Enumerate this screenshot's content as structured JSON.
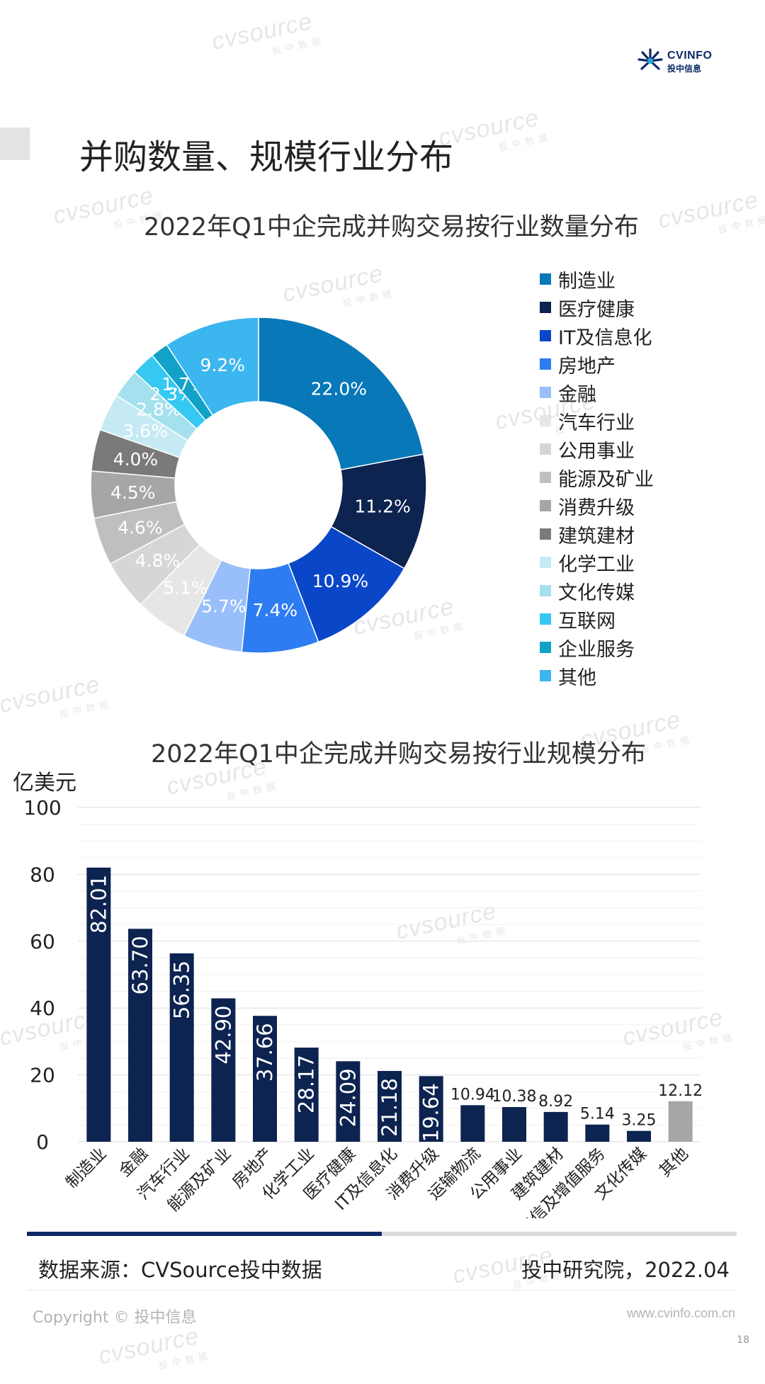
{
  "brand": {
    "name": "CVINFO",
    "sub": "投中信息"
  },
  "page_title": "并购数量、规模行业分布",
  "chart_data": [
    {
      "type": "pie",
      "title": "2022年Q1中企完成并购交易按行业数量分布",
      "categories": [
        "制造业",
        "医疗健康",
        "IT及信息化",
        "房地产",
        "金融",
        "汽车行业",
        "公用事业",
        "能源及矿业",
        "消费升级",
        "建筑建材",
        "化学工业",
        "文化传媒",
        "互联网",
        "企业服务",
        "其他"
      ],
      "values": [
        22.0,
        11.2,
        10.9,
        7.4,
        5.7,
        5.1,
        4.8,
        4.6,
        4.5,
        4.0,
        3.6,
        2.8,
        2.3,
        1.7,
        9.2
      ],
      "labels": [
        "22.0%",
        "11.2%",
        "10.9%",
        "7.4%",
        "5.7%",
        "5.1%",
        "4.8%",
        "4.6%",
        "4.5%",
        "4.0%",
        "3.6%",
        "2.8%",
        "2.3%",
        "1.7%",
        "9.2%"
      ],
      "colors": [
        "#0878b8",
        "#0d2350",
        "#0a46c8",
        "#2e7cf2",
        "#98bff9",
        "#e6e6e6",
        "#d6d6d6",
        "#bfbfbf",
        "#a6a6a6",
        "#7a7a7a",
        "#c5eaf4",
        "#a4e0ee",
        "#35c8f2",
        "#12a2c8",
        "#3cb6ef"
      ],
      "legend": "right"
    },
    {
      "type": "bar",
      "title": "2022年Q1中企完成并购交易按行业规模分布",
      "ylabel": "亿美元",
      "ylim": [
        0,
        100
      ],
      "yticks": [
        "0",
        "20",
        "40",
        "60",
        "80",
        "100"
      ],
      "categories": [
        "制造业",
        "金融",
        "汽车行业",
        "能源及矿业",
        "房地产",
        "化学工业",
        "医疗健康",
        "IT及信息化",
        "消费升级",
        "运输物流",
        "公用事业",
        "建筑建材",
        "电信及增值服务",
        "文化传媒",
        "其他"
      ],
      "values": [
        82.01,
        63.7,
        56.35,
        42.9,
        37.66,
        28.17,
        24.09,
        21.18,
        19.64,
        10.94,
        10.38,
        8.92,
        5.14,
        3.25,
        12.12
      ],
      "value_labels": [
        "82.01",
        "63.70",
        "56.35",
        "42.90",
        "37.66",
        "28.17",
        "24.09",
        "21.18",
        "19.64",
        "10.94",
        "10.38",
        "8.92",
        "5.14",
        "3.25",
        "12.12"
      ],
      "colors": {
        "main": "#0d2350",
        "other": "#a6a6a6"
      },
      "grid": true
    }
  ],
  "footer": {
    "progress": 0.5,
    "source": "数据来源：CVSource投中数据",
    "credit": "投中研究院，2022.04",
    "copyright": "Copyright © 投中信息",
    "website": "www.cvinfo.com.cn",
    "page": "18"
  }
}
